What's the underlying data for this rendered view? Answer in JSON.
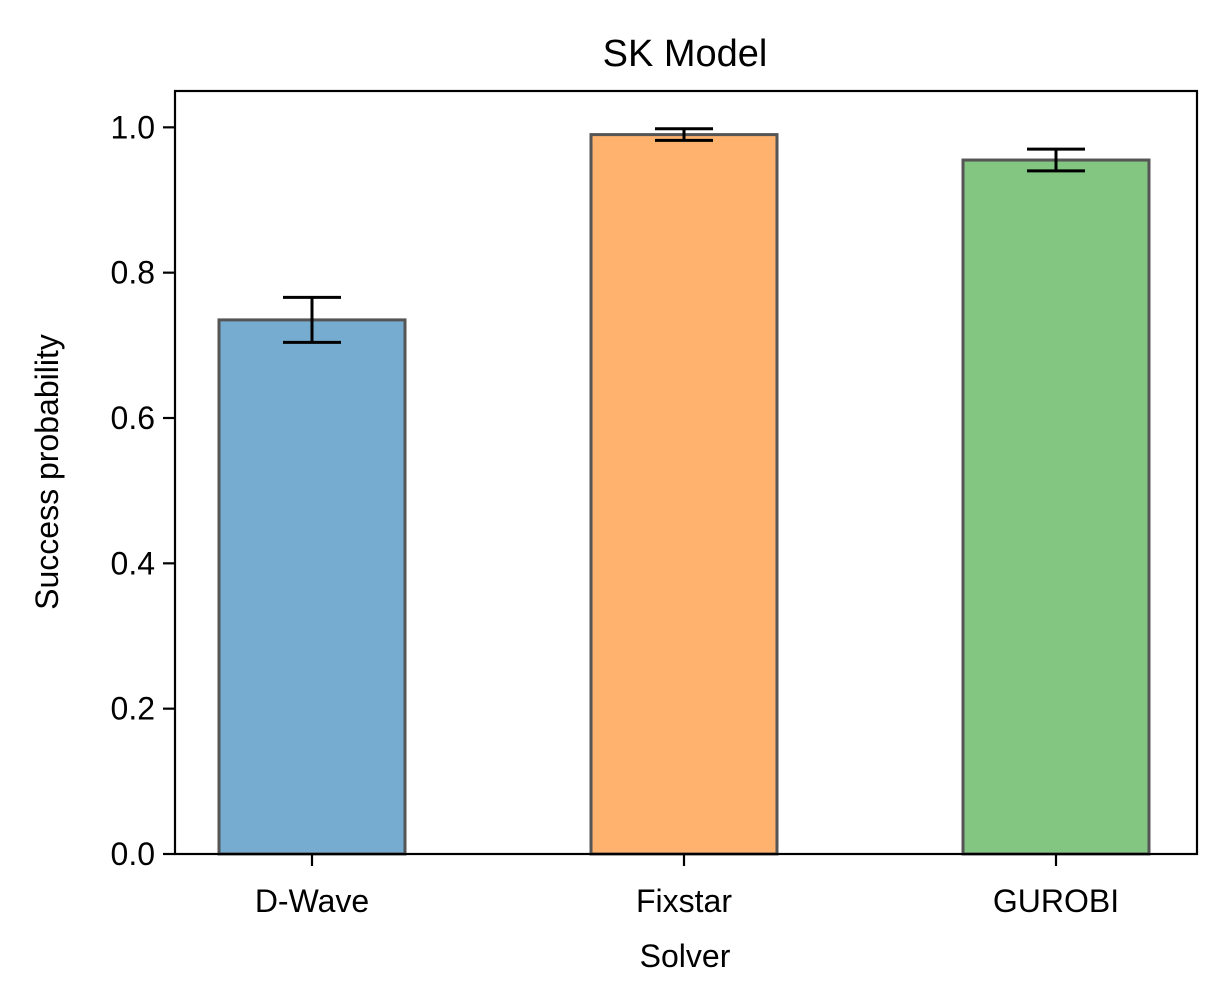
{
  "chart_data": {
    "type": "bar",
    "title": "SK Model",
    "xlabel": "Solver",
    "ylabel": "Success probability",
    "categories": [
      "D-Wave",
      "Fixstar",
      "GUROBI"
    ],
    "values": [
      0.735,
      0.99,
      0.955
    ],
    "errors": [
      0.031,
      0.008,
      0.015
    ],
    "colors": [
      "#77acd1",
      "#ffb26e",
      "#82c682"
    ],
    "edge_color": "#555555",
    "ylim": [
      0,
      1.05
    ],
    "yticks": [
      0.0,
      0.2,
      0.4,
      0.6,
      0.8,
      1.0
    ],
    "ytick_labels": [
      "0.0",
      "0.2",
      "0.4",
      "0.6",
      "0.8",
      "1.0"
    ],
    "grid": false,
    "legend": "none"
  }
}
